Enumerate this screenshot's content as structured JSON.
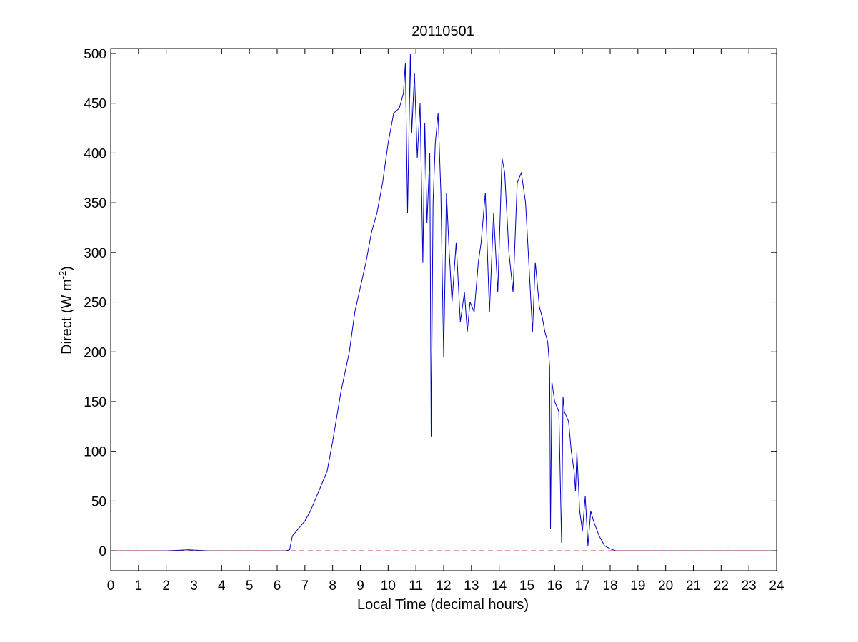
{
  "chart_data": {
    "type": "line",
    "title": "20110501",
    "xlabel": "Local Time (decimal hours)",
    "ylabel": "Direct (W m",
    "ylabel_superscript": "-2",
    "ylabel_suffix": ")",
    "xlim": [
      0,
      24
    ],
    "ylim": [
      -20,
      505
    ],
    "xticks": [
      "0",
      "1",
      "2",
      "3",
      "4",
      "5",
      "6",
      "7",
      "8",
      "9",
      "10",
      "11",
      "12",
      "13",
      "14",
      "15",
      "16",
      "17",
      "18",
      "19",
      "20",
      "21",
      "22",
      "23",
      "24"
    ],
    "yticks": [
      "0",
      "50",
      "100",
      "150",
      "200",
      "250",
      "300",
      "350",
      "400",
      "450",
      "500"
    ],
    "grid": false,
    "series": [
      {
        "color": "#0000cc",
        "style": "solid",
        "x": [
          0,
          1,
          2,
          2.8,
          3.5,
          4.5,
          5.5,
          6.3,
          6.45,
          6.5,
          6.55,
          6.7,
          7.0,
          7.2,
          7.5,
          7.8,
          8.0,
          8.3,
          8.6,
          8.8,
          9.0,
          9.2,
          9.4,
          9.6,
          9.8,
          10.0,
          10.2,
          10.4,
          10.55,
          10.62,
          10.7,
          10.8,
          10.85,
          10.95,
          11.05,
          11.15,
          11.25,
          11.32,
          11.4,
          11.5,
          11.55,
          11.62,
          11.7,
          11.8,
          11.9,
          12.0,
          12.1,
          12.2,
          12.3,
          12.45,
          12.6,
          12.75,
          12.85,
          12.95,
          13.1,
          13.25,
          13.35,
          13.5,
          13.65,
          13.8,
          13.95,
          14.1,
          14.2,
          14.35,
          14.5,
          14.65,
          14.8,
          14.95,
          15.05,
          15.2,
          15.3,
          15.45,
          15.55,
          15.65,
          15.75,
          15.82,
          15.85,
          15.9,
          16.0,
          16.15,
          16.25,
          16.3,
          16.35,
          16.5,
          16.6,
          16.7,
          16.75,
          16.8,
          16.9,
          17.0,
          17.1,
          17.2,
          17.3,
          17.4,
          17.6,
          17.8,
          18.0,
          18.2,
          18.5,
          19.0,
          20.0,
          21.0,
          22.0,
          23.0,
          24.0
        ],
        "y": [
          0,
          0,
          0,
          1,
          0,
          0,
          0,
          0,
          1,
          8,
          15,
          20,
          30,
          40,
          60,
          80,
          110,
          160,
          200,
          240,
          265,
          290,
          320,
          340,
          370,
          410,
          440,
          445,
          460,
          490,
          340,
          500,
          420,
          480,
          395,
          450,
          290,
          430,
          330,
          400,
          115,
          350,
          410,
          440,
          360,
          195,
          360,
          300,
          250,
          310,
          230,
          260,
          220,
          250,
          240,
          290,
          310,
          360,
          240,
          340,
          260,
          395,
          380,
          300,
          260,
          370,
          380,
          350,
          300,
          220,
          290,
          245,
          235,
          220,
          210,
          185,
          22,
          170,
          150,
          140,
          8,
          155,
          140,
          130,
          100,
          80,
          60,
          100,
          40,
          20,
          55,
          5,
          40,
          30,
          15,
          5,
          2,
          0,
          0,
          0,
          0,
          0,
          0,
          0,
          0
        ]
      },
      {
        "color": "#cc0000",
        "style": "dashed",
        "x": [
          0,
          24
        ],
        "y": [
          0,
          0
        ]
      }
    ]
  }
}
